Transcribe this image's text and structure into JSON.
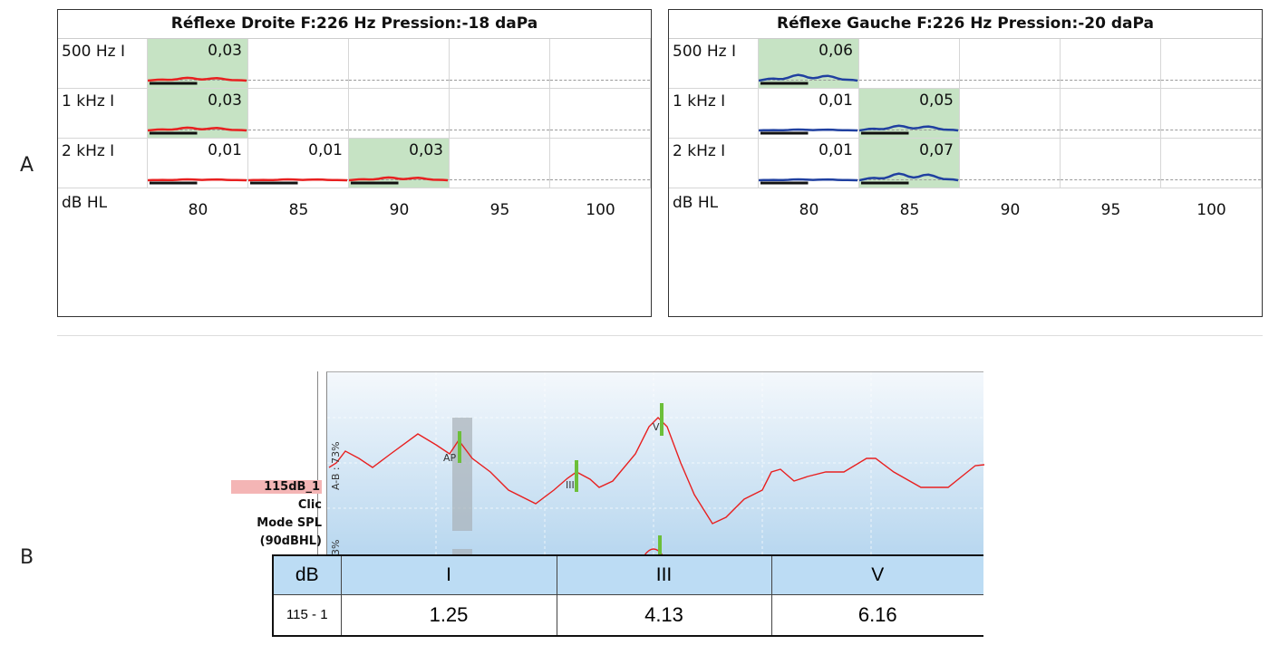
{
  "section_labels": {
    "a": "A",
    "b": "B"
  },
  "reflex_panels": [
    {
      "title": "Réflexe Droite  F:226 Hz Pression:-18 daPa",
      "curve_color": "#e82020",
      "columns": [
        "80",
        "85",
        "90",
        "95",
        "100"
      ],
      "footer_label": "dB HL",
      "rows": [
        {
          "label": "500 Hz I",
          "cells": [
            {
              "value": "0,03",
              "highlight": true
            },
            null,
            null,
            null,
            null
          ]
        },
        {
          "label": "1 kHz I",
          "cells": [
            {
              "value": "0,03",
              "highlight": true
            },
            null,
            null,
            null,
            null
          ]
        },
        {
          "label": "2 kHz I",
          "cells": [
            {
              "value": "0,01",
              "highlight": false
            },
            {
              "value": "0,01",
              "highlight": false
            },
            {
              "value": "0,03",
              "highlight": true
            },
            null,
            null
          ]
        }
      ]
    },
    {
      "title": "Réflexe Gauche  F:226 Hz Pression:-20 daPa",
      "curve_color": "#2040a0",
      "columns": [
        "80",
        "85",
        "90",
        "95",
        "100"
      ],
      "footer_label": "dB HL",
      "rows": [
        {
          "label": "500 Hz I",
          "cells": [
            {
              "value": "0,06",
              "highlight": true
            },
            null,
            null,
            null,
            null
          ]
        },
        {
          "label": "1 kHz I",
          "cells": [
            {
              "value": "0,01",
              "highlight": false
            },
            {
              "value": "0,05",
              "highlight": true
            },
            null,
            null,
            null
          ]
        },
        {
          "label": "2 kHz I",
          "cells": [
            {
              "value": "0,01",
              "highlight": false
            },
            {
              "value": "0,07",
              "highlight": true
            },
            null,
            null,
            null
          ]
        }
      ]
    }
  ],
  "abr": {
    "trace_name": "115dB_1",
    "stimulus": "Clic",
    "mode": "Mode SPL",
    "level": "(90dBHL)",
    "ratio_label": "A-B : 73%",
    "ratio_label_2": "3%",
    "peak_labels": {
      "ap": "AP",
      "iii": "III",
      "v": "V"
    },
    "trace_color": "#e82020",
    "marker_color": "#6cbf3a",
    "table": {
      "headers": [
        "dB",
        "I",
        "III",
        "V"
      ],
      "rows": [
        [
          "115 - 1",
          "1.25",
          "4.13",
          "6.16"
        ]
      ]
    }
  }
}
